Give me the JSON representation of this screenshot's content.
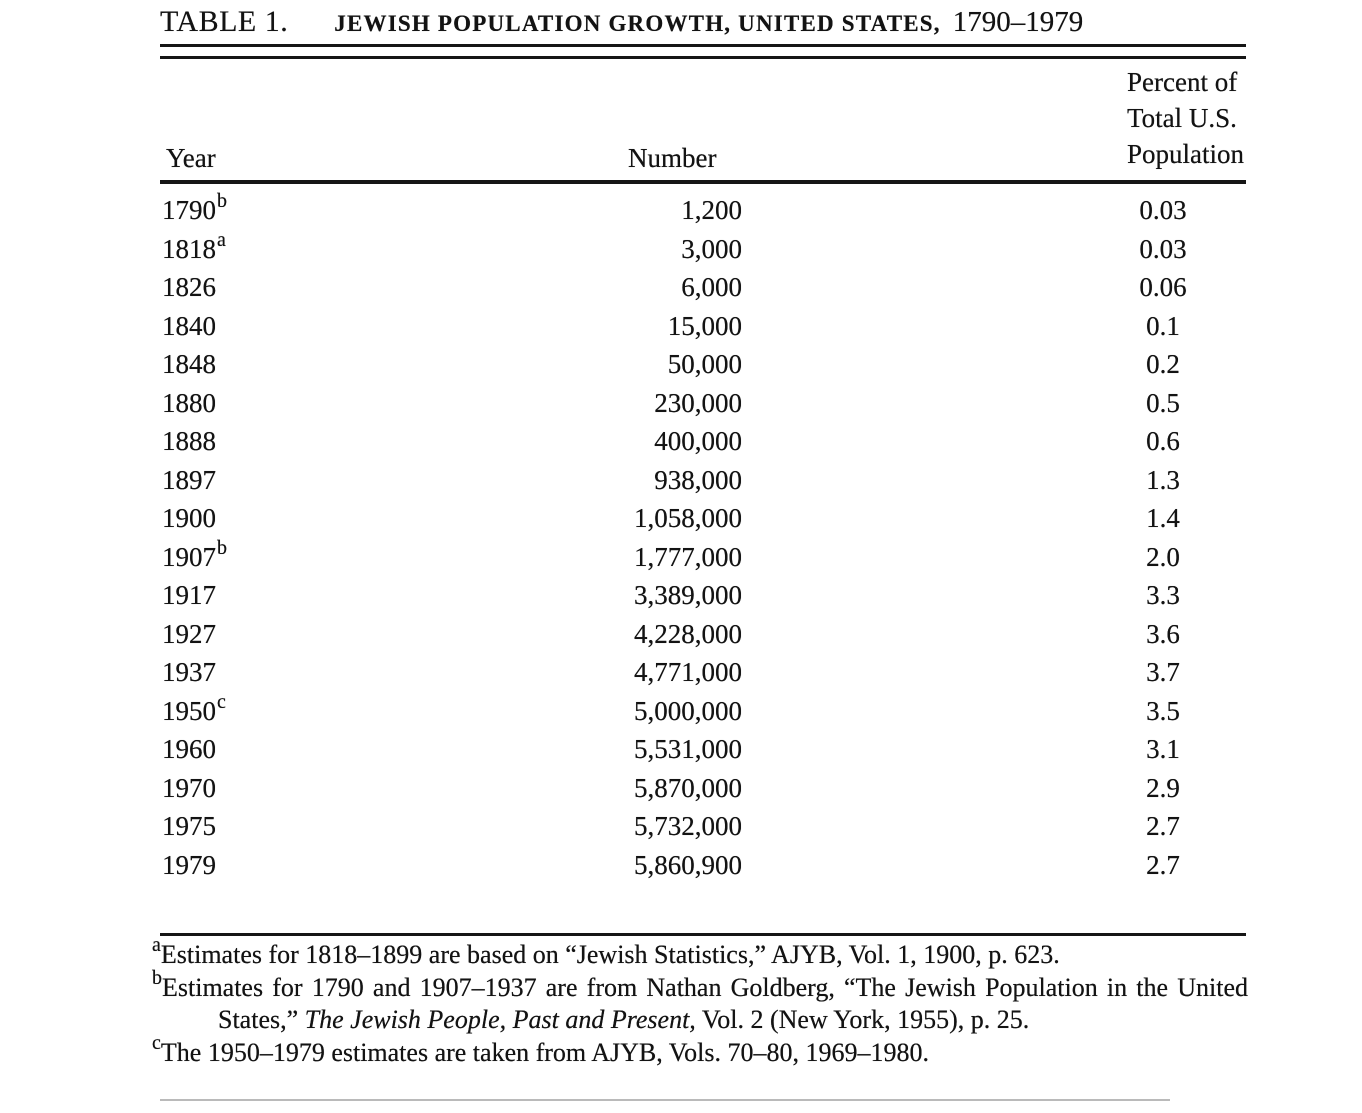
{
  "table": {
    "title": {
      "label": "TABLE 1.",
      "caps": "JEWISH POPULATION GROWTH, UNITED STATES,",
      "years": "1790–1979"
    },
    "header": {
      "year": "Year",
      "number": "Number",
      "percent_lines": [
        "Percent of",
        "Total U.S.",
        "Population"
      ]
    },
    "rows": [
      {
        "year": "1790",
        "note": "b",
        "number": "1,200",
        "percent": "0.03"
      },
      {
        "year": "1818",
        "note": "a",
        "number": "3,000",
        "percent": "0.03"
      },
      {
        "year": "1826",
        "note": "",
        "number": "6,000",
        "percent": "0.06"
      },
      {
        "year": "1840",
        "note": "",
        "number": "15,000",
        "percent": "0.1"
      },
      {
        "year": "1848",
        "note": "",
        "number": "50,000",
        "percent": "0.2"
      },
      {
        "year": "1880",
        "note": "",
        "number": "230,000",
        "percent": "0.5"
      },
      {
        "year": "1888",
        "note": "",
        "number": "400,000",
        "percent": "0.6"
      },
      {
        "year": "1897",
        "note": "",
        "number": "938,000",
        "percent": "1.3"
      },
      {
        "year": "1900",
        "note": "",
        "number": "1,058,000",
        "percent": "1.4"
      },
      {
        "year": "1907",
        "note": "b",
        "number": "1,777,000",
        "percent": "2.0"
      },
      {
        "year": "1917",
        "note": "",
        "number": "3,389,000",
        "percent": "3.3"
      },
      {
        "year": "1927",
        "note": "",
        "number": "4,228,000",
        "percent": "3.6"
      },
      {
        "year": "1937",
        "note": "",
        "number": "4,771,000",
        "percent": "3.7"
      },
      {
        "year": "1950",
        "note": "c",
        "number": "5,000,000",
        "percent": "3.5"
      },
      {
        "year": "1960",
        "note": "",
        "number": "5,531,000",
        "percent": "3.1"
      },
      {
        "year": "1970",
        "note": "",
        "number": "5,870,000",
        "percent": "2.9"
      },
      {
        "year": "1975",
        "note": "",
        "number": "5,732,000",
        "percent": "2.7"
      },
      {
        "year": "1979",
        "note": "",
        "number": "5,860,900",
        "percent": "2.7"
      }
    ],
    "footnotes": [
      {
        "marker": "a",
        "parts": [
          {
            "text": "Estimates for 1818–1899 are based on “Jewish Statistics,” AJYB, Vol. 1, 1900, p. 623.",
            "italic": false
          }
        ]
      },
      {
        "marker": "b",
        "parts": [
          {
            "text": "Estimates for 1790 and 1907–1937 are from Nathan Goldberg, “The Jewish Population in the United States,” ",
            "italic": false
          },
          {
            "text": "The Jewish People, Past and Present,",
            "italic": true
          },
          {
            "text": " Vol. 2 (New York, 1955), p. 25.",
            "italic": false
          }
        ]
      },
      {
        "marker": "c",
        "parts": [
          {
            "text": "The 1950–1979 estimates are taken from AJYB, Vols. 70–80, 1969–1980.",
            "italic": false
          }
        ]
      }
    ]
  }
}
